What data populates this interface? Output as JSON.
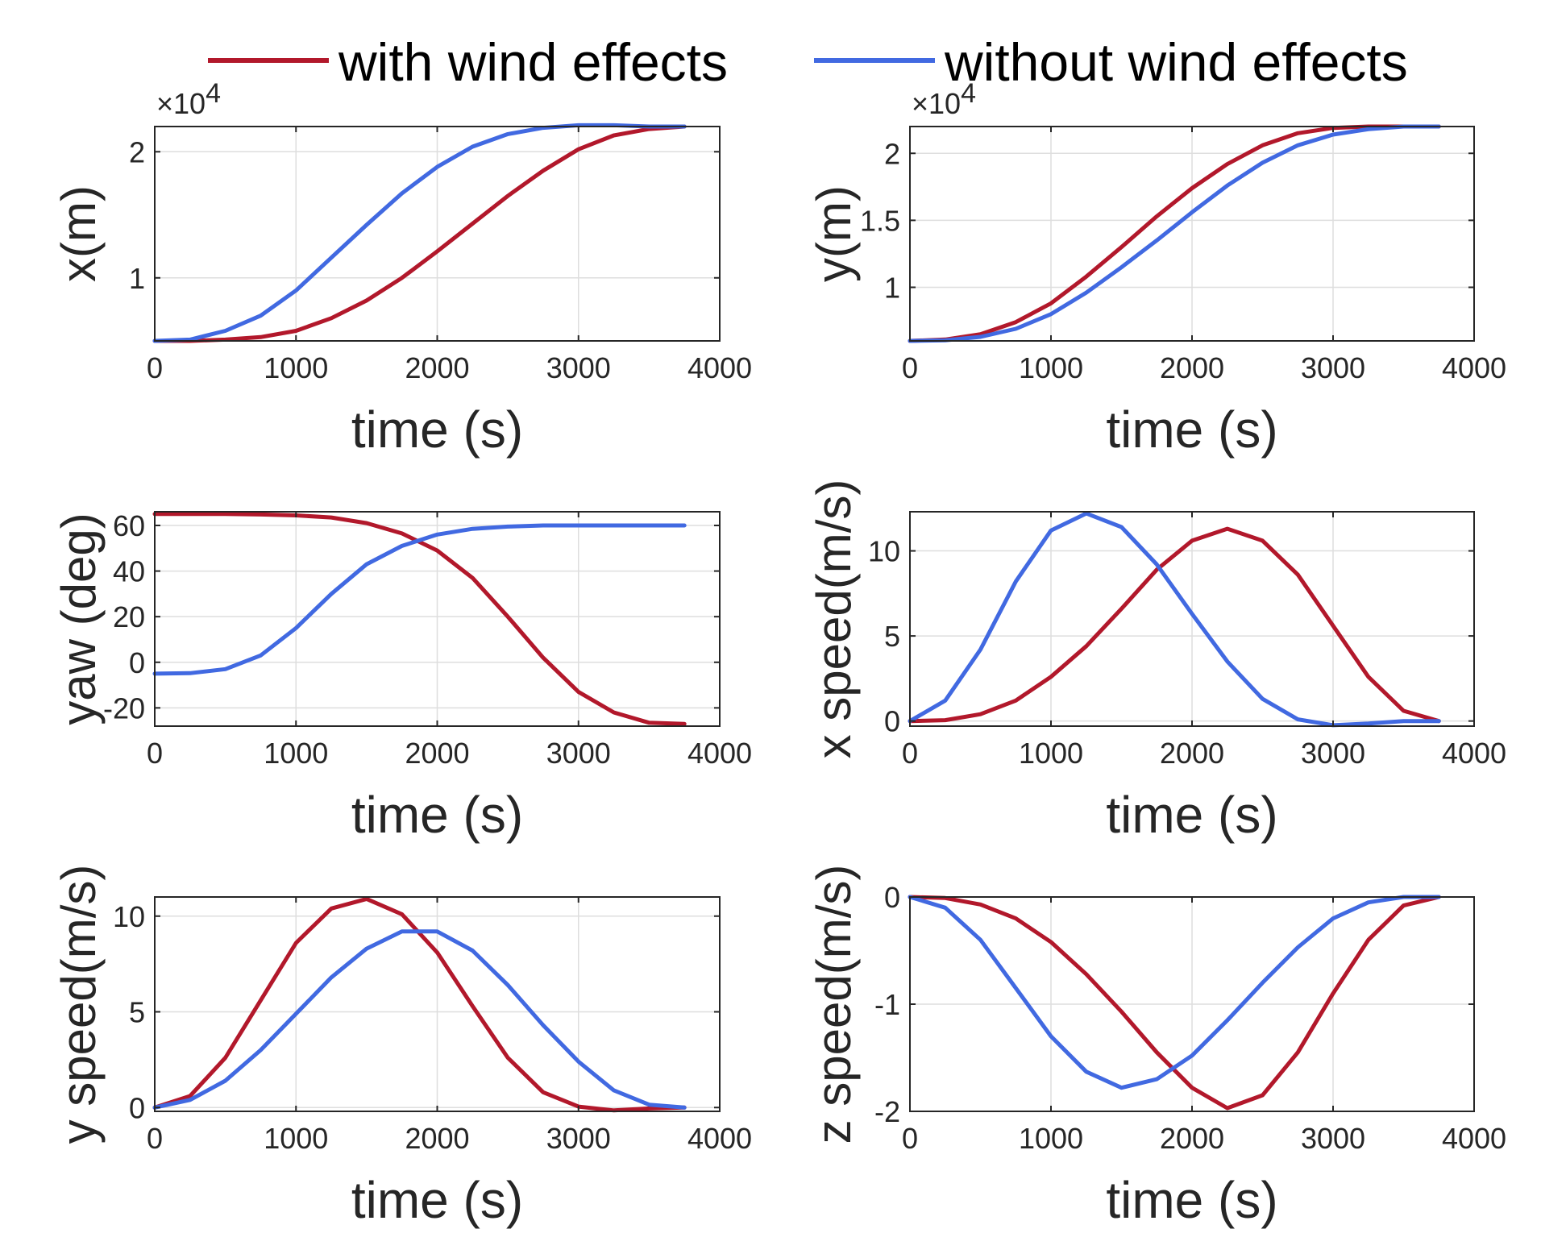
{
  "colors": {
    "with_wind": "#B2182B",
    "without_wind": "#4169E1",
    "grid": "#DEDEDE",
    "axis": "#262626"
  },
  "legend": {
    "items": [
      {
        "label": "with wind effects",
        "color": "#B2182B"
      },
      {
        "label": "without wind effects",
        "color": "#4169E1"
      }
    ]
  },
  "chart_data": [
    {
      "type": "line",
      "ylabel": "x(m)",
      "xlabel": "time (s)",
      "xlim": [
        0,
        4000
      ],
      "ylim": [
        5000,
        22000
      ],
      "xticks": [
        0,
        1000,
        2000,
        3000,
        4000
      ],
      "xtick_labels": [
        "0",
        "1000",
        "2000",
        "3000",
        "4000"
      ],
      "yticks": [
        10000,
        20000
      ],
      "ytick_labels": [
        "1",
        "2"
      ],
      "exponent_label": "×10",
      "exponent_power": "4",
      "grid": true,
      "series": [
        {
          "name": "with wind effects",
          "x": [
            0,
            250,
            500,
            750,
            1000,
            1250,
            1500,
            1750,
            2000,
            2250,
            2500,
            2750,
            3000,
            3250,
            3500,
            3750
          ],
          "y": [
            5000,
            5000,
            5100,
            5300,
            5800,
            6800,
            8200,
            10000,
            12100,
            14300,
            16500,
            18500,
            20200,
            21300,
            21800,
            22000
          ]
        },
        {
          "name": "without wind effects",
          "x": [
            0,
            250,
            500,
            750,
            1000,
            1250,
            1500,
            1750,
            2000,
            2250,
            2500,
            2750,
            3000,
            3250,
            3500,
            3750
          ],
          "y": [
            5000,
            5100,
            5800,
            7000,
            9000,
            11600,
            14200,
            16700,
            18800,
            20400,
            21400,
            21900,
            22100,
            22100,
            22000,
            22000
          ]
        }
      ]
    },
    {
      "type": "line",
      "ylabel": "y(m)",
      "xlabel": "time (s)",
      "xlim": [
        0,
        4000
      ],
      "ylim": [
        6000,
        22000
      ],
      "xticks": [
        0,
        1000,
        2000,
        3000,
        4000
      ],
      "xtick_labels": [
        "0",
        "1000",
        "2000",
        "3000",
        "4000"
      ],
      "yticks": [
        10000,
        15000,
        20000
      ],
      "ytick_labels": [
        "1",
        "1.5",
        "2"
      ],
      "exponent_label": "×10",
      "exponent_power": "4",
      "grid": true,
      "series": [
        {
          "name": "with wind effects",
          "x": [
            0,
            250,
            500,
            750,
            1000,
            1250,
            1500,
            1750,
            2000,
            2250,
            2500,
            2750,
            3000,
            3250,
            3500,
            3750
          ],
          "y": [
            6000,
            6100,
            6500,
            7400,
            8800,
            10800,
            13000,
            15300,
            17400,
            19200,
            20600,
            21500,
            21900,
            22000,
            22000,
            22000
          ]
        },
        {
          "name": "without wind effects",
          "x": [
            0,
            250,
            500,
            750,
            1000,
            1250,
            1500,
            1750,
            2000,
            2250,
            2500,
            2750,
            3000,
            3250,
            3500,
            3750
          ],
          "y": [
            6000,
            6050,
            6300,
            6900,
            8000,
            9600,
            11500,
            13500,
            15600,
            17600,
            19300,
            20600,
            21400,
            21800,
            22000,
            22000
          ]
        }
      ]
    },
    {
      "type": "line",
      "ylabel": "yaw (deg)",
      "xlabel": "time (s)",
      "xlim": [
        0,
        4000
      ],
      "ylim": [
        -28,
        66
      ],
      "xticks": [
        0,
        1000,
        2000,
        3000,
        4000
      ],
      "xtick_labels": [
        "0",
        "1000",
        "2000",
        "3000",
        "4000"
      ],
      "yticks": [
        -20,
        0,
        20,
        40,
        60
      ],
      "ytick_labels": [
        "-20",
        "0",
        "20",
        "40",
        "60"
      ],
      "grid": true,
      "series": [
        {
          "name": "with wind effects",
          "x": [
            0,
            250,
            500,
            750,
            1000,
            1250,
            1500,
            1750,
            2000,
            2250,
            2500,
            2750,
            3000,
            3250,
            3500,
            3750
          ],
          "y": [
            65,
            65,
            65,
            64.8,
            64.4,
            63.5,
            61,
            56.5,
            49,
            37,
            20,
            2,
            -13,
            -22,
            -26.5,
            -27
          ]
        },
        {
          "name": "without wind effects",
          "x": [
            0,
            250,
            500,
            750,
            1000,
            1250,
            1500,
            1750,
            2000,
            2250,
            2500,
            2750,
            3000,
            3250,
            3500,
            3750
          ],
          "y": [
            -5,
            -4.8,
            -3,
            3,
            15,
            30,
            43,
            51,
            56,
            58.5,
            59.5,
            60,
            60,
            60,
            60,
            60
          ]
        }
      ]
    },
    {
      "type": "line",
      "ylabel": "x speed(m/s)",
      "xlabel": "time (s)",
      "xlim": [
        0,
        4000
      ],
      "ylim": [
        -0.3,
        12.3
      ],
      "xticks": [
        0,
        1000,
        2000,
        3000,
        4000
      ],
      "xtick_labels": [
        "0",
        "1000",
        "2000",
        "3000",
        "4000"
      ],
      "yticks": [
        0,
        5,
        10
      ],
      "ytick_labels": [
        "0",
        "5",
        "10"
      ],
      "grid": true,
      "series": [
        {
          "name": "with wind effects",
          "x": [
            0,
            250,
            500,
            750,
            1000,
            1250,
            1500,
            1750,
            2000,
            2250,
            2500,
            2750,
            3000,
            3250,
            3500,
            3750
          ],
          "y": [
            0,
            0.05,
            0.4,
            1.2,
            2.6,
            4.4,
            6.6,
            8.9,
            10.6,
            11.3,
            10.6,
            8.6,
            5.6,
            2.6,
            0.6,
            0
          ]
        },
        {
          "name": "without wind effects",
          "x": [
            0,
            250,
            500,
            750,
            1000,
            1250,
            1500,
            1750,
            2000,
            2250,
            2500,
            2750,
            3000,
            3250,
            3500,
            3750
          ],
          "y": [
            0,
            1.2,
            4.2,
            8.2,
            11.2,
            12.2,
            11.4,
            9.2,
            6.3,
            3.5,
            1.3,
            0.1,
            -0.25,
            -0.15,
            0,
            0
          ]
        }
      ]
    },
    {
      "type": "line",
      "ylabel": "y speed(m/s)",
      "xlabel": "time (s)",
      "xlim": [
        0,
        4000
      ],
      "ylim": [
        -0.2,
        11
      ],
      "xticks": [
        0,
        1000,
        2000,
        3000,
        4000
      ],
      "xtick_labels": [
        "0",
        "1000",
        "2000",
        "3000",
        "4000"
      ],
      "yticks": [
        0,
        5,
        10
      ],
      "ytick_labels": [
        "0",
        "5",
        "10"
      ],
      "grid": true,
      "series": [
        {
          "name": "with wind effects",
          "x": [
            0,
            250,
            500,
            750,
            1000,
            1250,
            1500,
            1750,
            2000,
            2250,
            2500,
            2750,
            3000,
            3250,
            3500,
            3750
          ],
          "y": [
            0,
            0.6,
            2.6,
            5.6,
            8.6,
            10.4,
            10.9,
            10.1,
            8.1,
            5.3,
            2.6,
            0.8,
            0.05,
            -0.15,
            -0.05,
            0
          ]
        },
        {
          "name": "without wind effects",
          "x": [
            0,
            250,
            500,
            750,
            1000,
            1250,
            1500,
            1750,
            2000,
            2250,
            2500,
            2750,
            3000,
            3250,
            3500,
            3750
          ],
          "y": [
            0,
            0.4,
            1.4,
            3.0,
            4.9,
            6.8,
            8.3,
            9.2,
            9.2,
            8.2,
            6.4,
            4.3,
            2.4,
            0.9,
            0.15,
            0
          ]
        }
      ]
    },
    {
      "type": "line",
      "ylabel": "z speed(m/s)",
      "xlabel": "time (s)",
      "xlim": [
        0,
        4000
      ],
      "ylim": [
        -2,
        0
      ],
      "xticks": [
        0,
        1000,
        2000,
        3000,
        4000
      ],
      "xtick_labels": [
        "0",
        "1000",
        "2000",
        "3000",
        "4000"
      ],
      "yticks": [
        -2,
        -1,
        0
      ],
      "ytick_labels": [
        "-2",
        "-1",
        "0"
      ],
      "grid": true,
      "series": [
        {
          "name": "with wind effects",
          "x": [
            0,
            250,
            500,
            750,
            1000,
            1250,
            1500,
            1750,
            2000,
            2250,
            2500,
            2750,
            3000,
            3250,
            3500,
            3750
          ],
          "y": [
            0,
            -0.01,
            -0.07,
            -0.2,
            -0.42,
            -0.72,
            -1.07,
            -1.45,
            -1.78,
            -1.97,
            -1.85,
            -1.45,
            -0.9,
            -0.4,
            -0.08,
            0
          ]
        },
        {
          "name": "without wind effects",
          "x": [
            0,
            250,
            500,
            750,
            1000,
            1250,
            1500,
            1750,
            2000,
            2250,
            2500,
            2750,
            3000,
            3250,
            3500,
            3750
          ],
          "y": [
            0,
            -0.1,
            -0.4,
            -0.85,
            -1.3,
            -1.63,
            -1.78,
            -1.7,
            -1.48,
            -1.15,
            -0.8,
            -0.47,
            -0.2,
            -0.05,
            0,
            0
          ]
        }
      ]
    }
  ]
}
